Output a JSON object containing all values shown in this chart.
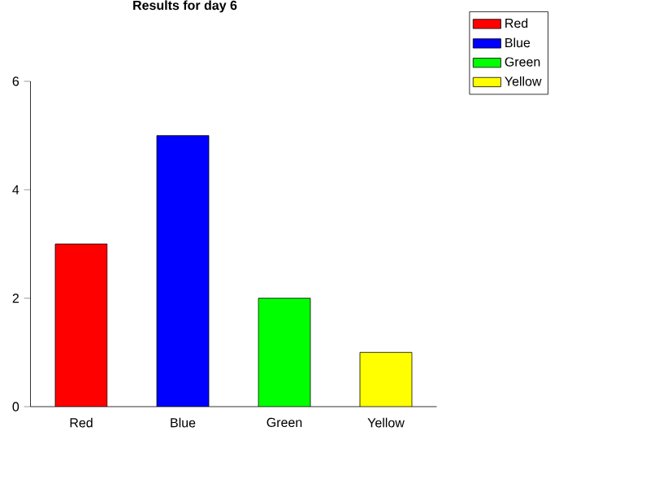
{
  "chart_data": {
    "type": "bar",
    "title": "Results for day 6",
    "categories": [
      "Red",
      "Blue",
      "Green",
      "Yellow"
    ],
    "series": [
      {
        "name": "Red",
        "color": "#ff0000",
        "values": [
          3,
          null,
          null,
          null
        ]
      },
      {
        "name": "Blue",
        "color": "#0000ff",
        "values": [
          null,
          5,
          null,
          null
        ]
      },
      {
        "name": "Green",
        "color": "#00ff00",
        "values": [
          null,
          null,
          2,
          null
        ]
      },
      {
        "name": "Yellow",
        "color": "#ffff00",
        "values": [
          null,
          null,
          null,
          1
        ]
      }
    ],
    "ylim": [
      0,
      6
    ],
    "yticks": [
      0,
      2,
      4,
      6
    ],
    "grid": false,
    "legend": "top right"
  }
}
